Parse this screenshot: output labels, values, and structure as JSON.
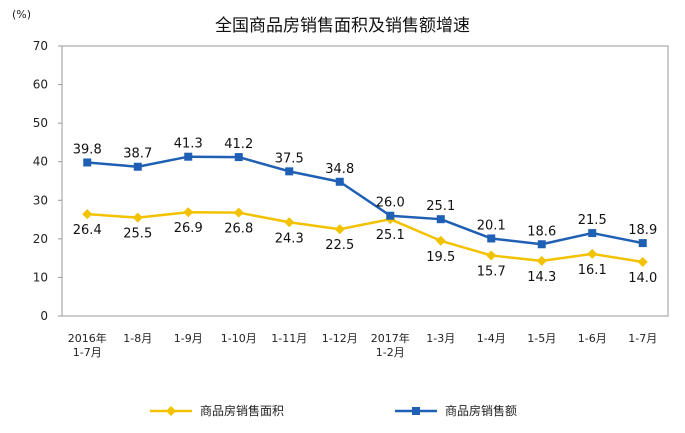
{
  "chart_data": {
    "type": "line",
    "title": "全国商品房销售面积及销售额增速",
    "unit": "(%)",
    "xlabel": "",
    "ylabel": "",
    "ylim": [
      0,
      70
    ],
    "yticks": [
      0,
      10,
      20,
      30,
      40,
      50,
      60,
      70
    ],
    "grid": false,
    "legend_position": "bottom",
    "categories": [
      [
        "2016年",
        "1-7月"
      ],
      [
        "1-8月"
      ],
      [
        "1-9月"
      ],
      [
        "1-10月"
      ],
      [
        "1-11月"
      ],
      [
        "1-12月"
      ],
      [
        "2017年",
        "1-2月"
      ],
      [
        "1-3月"
      ],
      [
        "1-4月"
      ],
      [
        "1-5月"
      ],
      [
        "1-6月"
      ],
      [
        "1-7月"
      ]
    ],
    "series": [
      {
        "name": "商品房销售面积",
        "color": "#F2C200",
        "marker": "diamond",
        "values": [
          26.4,
          25.5,
          26.9,
          26.8,
          24.3,
          22.5,
          25.1,
          19.5,
          15.7,
          14.3,
          16.1,
          14.0
        ],
        "label_position": "below"
      },
      {
        "name": "商品房销售额",
        "color": "#1F5FB4",
        "marker": "square",
        "values": [
          39.8,
          38.7,
          41.3,
          41.2,
          37.5,
          34.8,
          26.0,
          25.1,
          20.1,
          18.6,
          21.5,
          18.9
        ],
        "label_position": "above"
      }
    ]
  }
}
